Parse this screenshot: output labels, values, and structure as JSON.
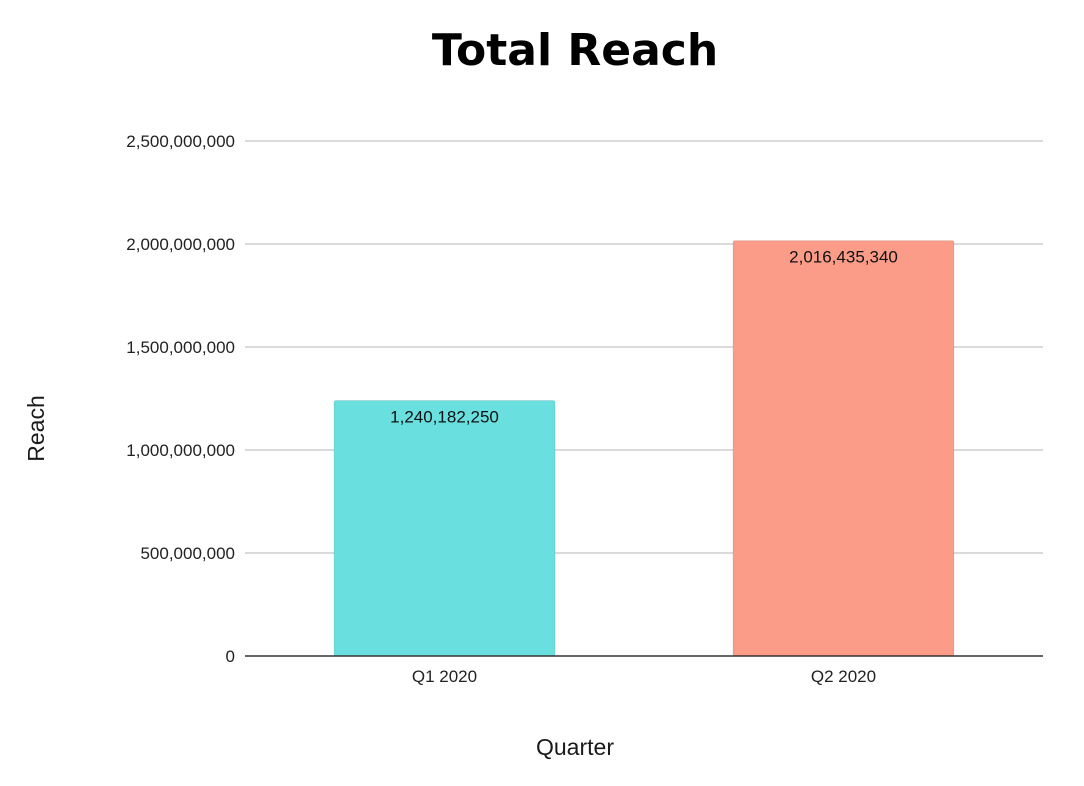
{
  "chart_data": {
    "type": "bar",
    "title": "Total Reach",
    "xlabel": "Quarter",
    "ylabel": "Reach",
    "categories": [
      "Q1 2020",
      "Q2 2020"
    ],
    "values": [
      1240182250,
      2016435340
    ],
    "data_labels": [
      "1,240,182,250",
      "2,016,435,340"
    ],
    "colors": [
      "#6ADFDF",
      "#FA9C87"
    ],
    "ylim": [
      0,
      2500000000
    ],
    "yticks": [
      0,
      500000000,
      1000000000,
      1500000000,
      2000000000,
      2500000000
    ],
    "ytick_labels": [
      "0",
      "500,000,000",
      "1,000,000,000",
      "1,500,000,000",
      "2,000,000,000",
      "2,500,000,000"
    ],
    "grid": true,
    "legend": "none"
  }
}
